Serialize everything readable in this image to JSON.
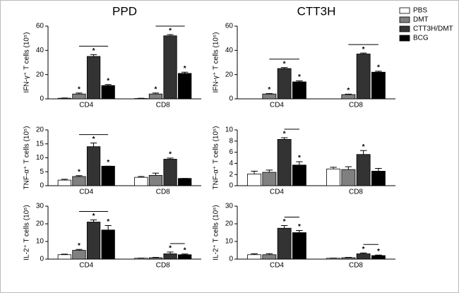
{
  "chart_data": [
    {
      "type": "bar",
      "title": "PPD",
      "y_label": "IFN-γ⁺ T cells (10⁵)",
      "categories": [
        "CD4",
        "CD8"
      ],
      "ylim": [
        0,
        60
      ],
      "yticks": [
        0,
        20,
        40,
        60
      ],
      "series": [
        {
          "color": "#ffffff",
          "values": [
            0.5,
            0.3
          ],
          "errors": [
            0.2,
            0.2
          ],
          "significance": [
            null,
            null
          ]
        },
        {
          "color": "#808080",
          "values": [
            4,
            4
          ],
          "errors": [
            0.8,
            0.8
          ],
          "significance": [
            "*",
            "*"
          ]
        },
        {
          "color": "#333333",
          "values": [
            35,
            52
          ],
          "errors": [
            1.5,
            1
          ],
          "significance": [
            "*",
            "*"
          ]
        },
        {
          "color": "#000000",
          "values": [
            11,
            21
          ],
          "errors": [
            0.8,
            1
          ],
          "significance": [
            "*",
            "*"
          ]
        }
      ]
    },
    {
      "type": "bar",
      "title": "CTT3H",
      "y_label": "IFN-γ⁺ T cells (10⁵)",
      "categories": [
        "CD4",
        "CD8"
      ],
      "ylim": [
        0,
        60
      ],
      "yticks": [
        0,
        20,
        40,
        60
      ],
      "legend": "top-right",
      "series": [
        {
          "name": "PBS",
          "color": "#ffffff",
          "values": [
            0,
            0
          ],
          "errors": [
            0,
            0
          ],
          "significance": [
            null,
            null
          ]
        },
        {
          "name": "DMT",
          "color": "#808080",
          "values": [
            4,
            3.5
          ],
          "errors": [
            0.4,
            0.4
          ],
          "significance": [
            "*",
            "*"
          ]
        },
        {
          "name": "CTT3H/DMT",
          "color": "#333333",
          "values": [
            25,
            37
          ],
          "errors": [
            0.8,
            0.8
          ],
          "significance": [
            "*",
            "*"
          ]
        },
        {
          "name": "BCG",
          "color": "#000000",
          "values": [
            14,
            22
          ],
          "errors": [
            0.8,
            0.8
          ],
          "significance": [
            "*",
            "*"
          ]
        }
      ]
    },
    {
      "type": "bar",
      "y_label": "TNF-α⁺ T cells (10⁵)",
      "categories": [
        "CD4",
        "CD8"
      ],
      "ylim": [
        0,
        20
      ],
      "yticks": [
        0,
        5,
        10,
        15,
        20
      ],
      "series": [
        {
          "color": "#ffffff",
          "values": [
            2,
            3
          ],
          "errors": [
            0.3,
            0.3
          ],
          "significance": [
            null,
            null
          ]
        },
        {
          "color": "#808080",
          "values": [
            3.3,
            3.7
          ],
          "errors": [
            0.3,
            0.8
          ],
          "significance": [
            "*",
            null
          ]
        },
        {
          "color": "#333333",
          "values": [
            14,
            9.5
          ],
          "errors": [
            1.3,
            0.4
          ],
          "significance": [
            "*",
            "*"
          ]
        },
        {
          "color": "#000000",
          "values": [
            7,
            2.6
          ],
          "errors": [
            0,
            0
          ],
          "significance": [
            "*",
            null
          ]
        }
      ]
    },
    {
      "type": "bar",
      "y_label": "TNF-α⁺ T cells (10⁵)",
      "categories": [
        "CD4",
        "CD8"
      ],
      "ylim": [
        0,
        10
      ],
      "yticks": [
        0,
        2,
        4,
        6,
        8,
        10
      ],
      "series": [
        {
          "color": "#ffffff",
          "values": [
            2.1,
            3
          ],
          "errors": [
            0.5,
            0.3
          ],
          "significance": [
            null,
            null
          ]
        },
        {
          "color": "#808080",
          "values": [
            2.4,
            2.9
          ],
          "errors": [
            0.4,
            0.5
          ],
          "significance": [
            null,
            null
          ]
        },
        {
          "color": "#333333",
          "values": [
            8.3,
            5.6
          ],
          "errors": [
            0.3,
            0.7
          ],
          "significance": [
            "*",
            "*"
          ]
        },
        {
          "color": "#000000",
          "values": [
            3.7,
            2.6
          ],
          "errors": [
            0.6,
            0.5
          ],
          "significance": [
            "*",
            null
          ]
        }
      ]
    },
    {
      "type": "bar",
      "y_label": "IL-2⁺ T cells (10⁵)",
      "categories": [
        "CD4",
        "CD8"
      ],
      "ylim": [
        0,
        30
      ],
      "yticks": [
        0,
        10,
        20,
        30
      ],
      "series": [
        {
          "color": "#ffffff",
          "values": [
            2.5,
            0.5
          ],
          "errors": [
            0.3,
            0.1
          ],
          "significance": [
            null,
            null
          ]
        },
        {
          "color": "#808080",
          "values": [
            5,
            0.8
          ],
          "errors": [
            0.5,
            0.2
          ],
          "significance": [
            "*",
            null
          ]
        },
        {
          "color": "#333333",
          "values": [
            21,
            3
          ],
          "errors": [
            1.2,
            1
          ],
          "significance": [
            "*",
            "*"
          ]
        },
        {
          "color": "#000000",
          "values": [
            16.5,
            2.5
          ],
          "errors": [
            2.5,
            0.4
          ],
          "significance": [
            "*",
            "*"
          ]
        }
      ]
    },
    {
      "type": "bar",
      "y_label": "IL-2⁺ T cells (10⁵)",
      "categories": [
        "CD4",
        "CD8"
      ],
      "ylim": [
        0,
        30
      ],
      "yticks": [
        0,
        10,
        20,
        30
      ],
      "series": [
        {
          "color": "#ffffff",
          "values": [
            2.5,
            0.5
          ],
          "errors": [
            0.5,
            0.1
          ],
          "significance": [
            null,
            null
          ]
        },
        {
          "color": "#808080",
          "values": [
            2.5,
            0.8
          ],
          "errors": [
            0.6,
            0.2
          ],
          "significance": [
            null,
            null
          ]
        },
        {
          "color": "#333333",
          "values": [
            17.5,
            3
          ],
          "errors": [
            1.5,
            0.5
          ],
          "significance": [
            "*",
            "*"
          ]
        },
        {
          "color": "#000000",
          "values": [
            15,
            2
          ],
          "errors": [
            1.2,
            0.3
          ],
          "significance": [
            "*",
            "*"
          ]
        }
      ]
    }
  ]
}
